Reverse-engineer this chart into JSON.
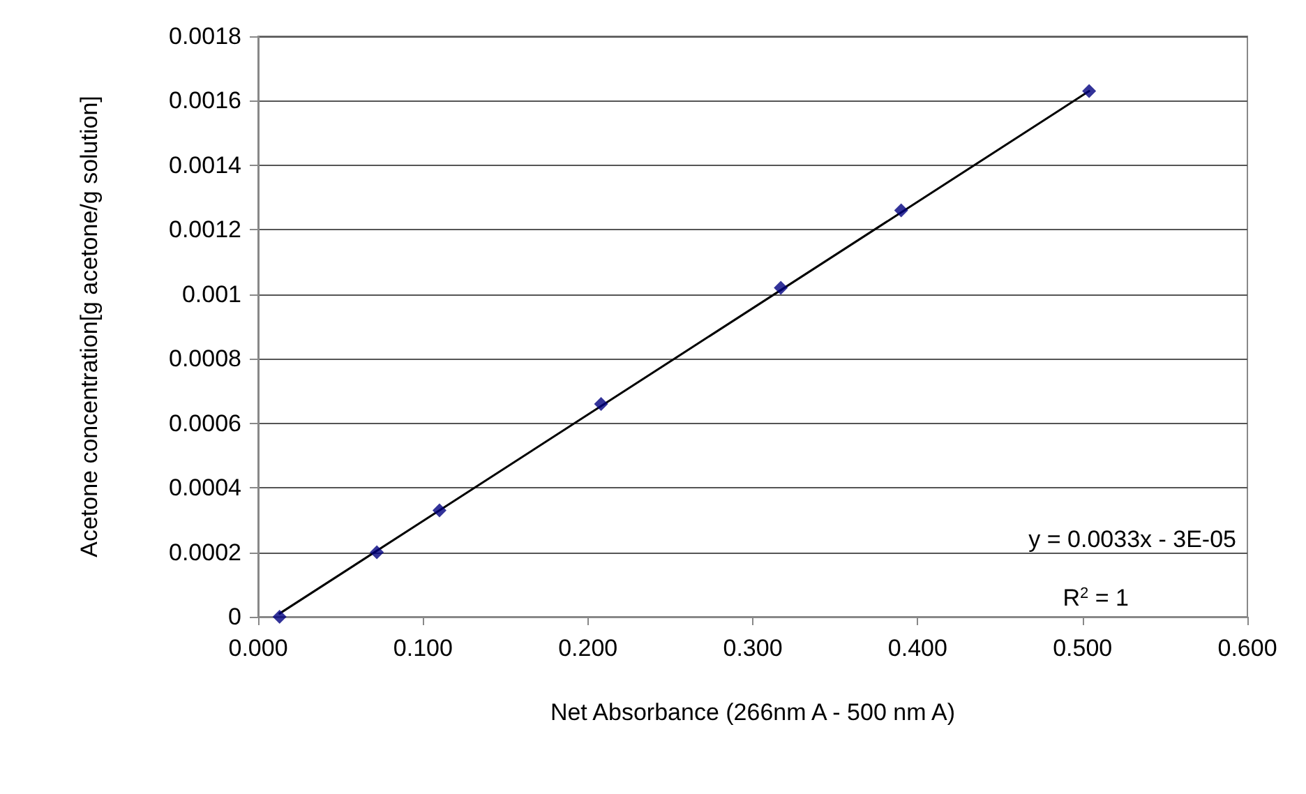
{
  "chart_data": {
    "type": "scatter",
    "xlabel": "Net Absorbance (266nm A - 500 nm A)",
    "ylabel": "Acetone concentration[g acetone/g solution]",
    "x": [
      0.013,
      0.072,
      0.11,
      0.208,
      0.317,
      0.39,
      0.504
    ],
    "series": [
      {
        "color": "#000080",
        "marker": "diamond",
        "values": [
          0,
          0.0002,
          0.00033,
          0.00066,
          0.00102,
          0.00126,
          0.00163
        ]
      },
      {
        "type": "line",
        "color": "#000000",
        "marker": "none",
        "line_style": "solid",
        "x": [
          0.013,
          0.504
        ],
        "values": [
          1e-05,
          0.00163
        ]
      }
    ],
    "xlim": [
      0,
      0.6
    ],
    "xticks": [
      {
        "value": 0,
        "label": "0.000"
      },
      {
        "value": 0.1,
        "label": "0.100"
      },
      {
        "value": 0.2,
        "label": "0.200"
      },
      {
        "value": 0.3,
        "label": "0.300"
      },
      {
        "value": 0.4,
        "label": "0.400"
      },
      {
        "value": 0.5,
        "label": "0.500"
      },
      {
        "value": 0.6,
        "label": "0.600"
      }
    ],
    "ylim": [
      0,
      0.0018
    ],
    "yticks": [
      0,
      0.0002,
      0.0004,
      0.0006,
      0.0008,
      0.001,
      0.0012,
      0.0014,
      0.0016,
      0.0018
    ],
    "grid": "y",
    "annotations": [
      "y = 0.0033x - 3E-05",
      "R$^{2}$ = 1"
    ]
  }
}
